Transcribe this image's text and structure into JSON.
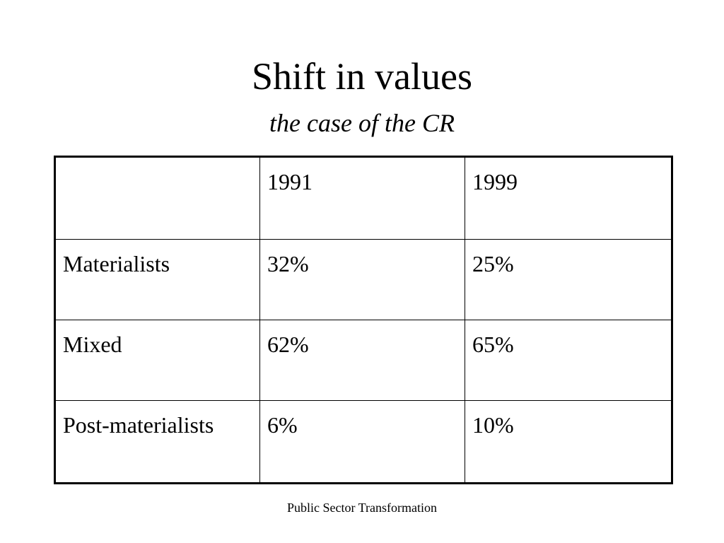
{
  "slide": {
    "title": "Shift in values",
    "subtitle": "the case of the CR",
    "footer": "Public Sector Transformation"
  },
  "table": {
    "header": [
      "",
      "1991",
      "1999"
    ],
    "rows": [
      [
        "Materialists",
        "32%",
        "25%"
      ],
      [
        "Mixed",
        "62%",
        "65%"
      ],
      [
        "Post-materialists",
        "6%",
        "10%"
      ]
    ]
  }
}
